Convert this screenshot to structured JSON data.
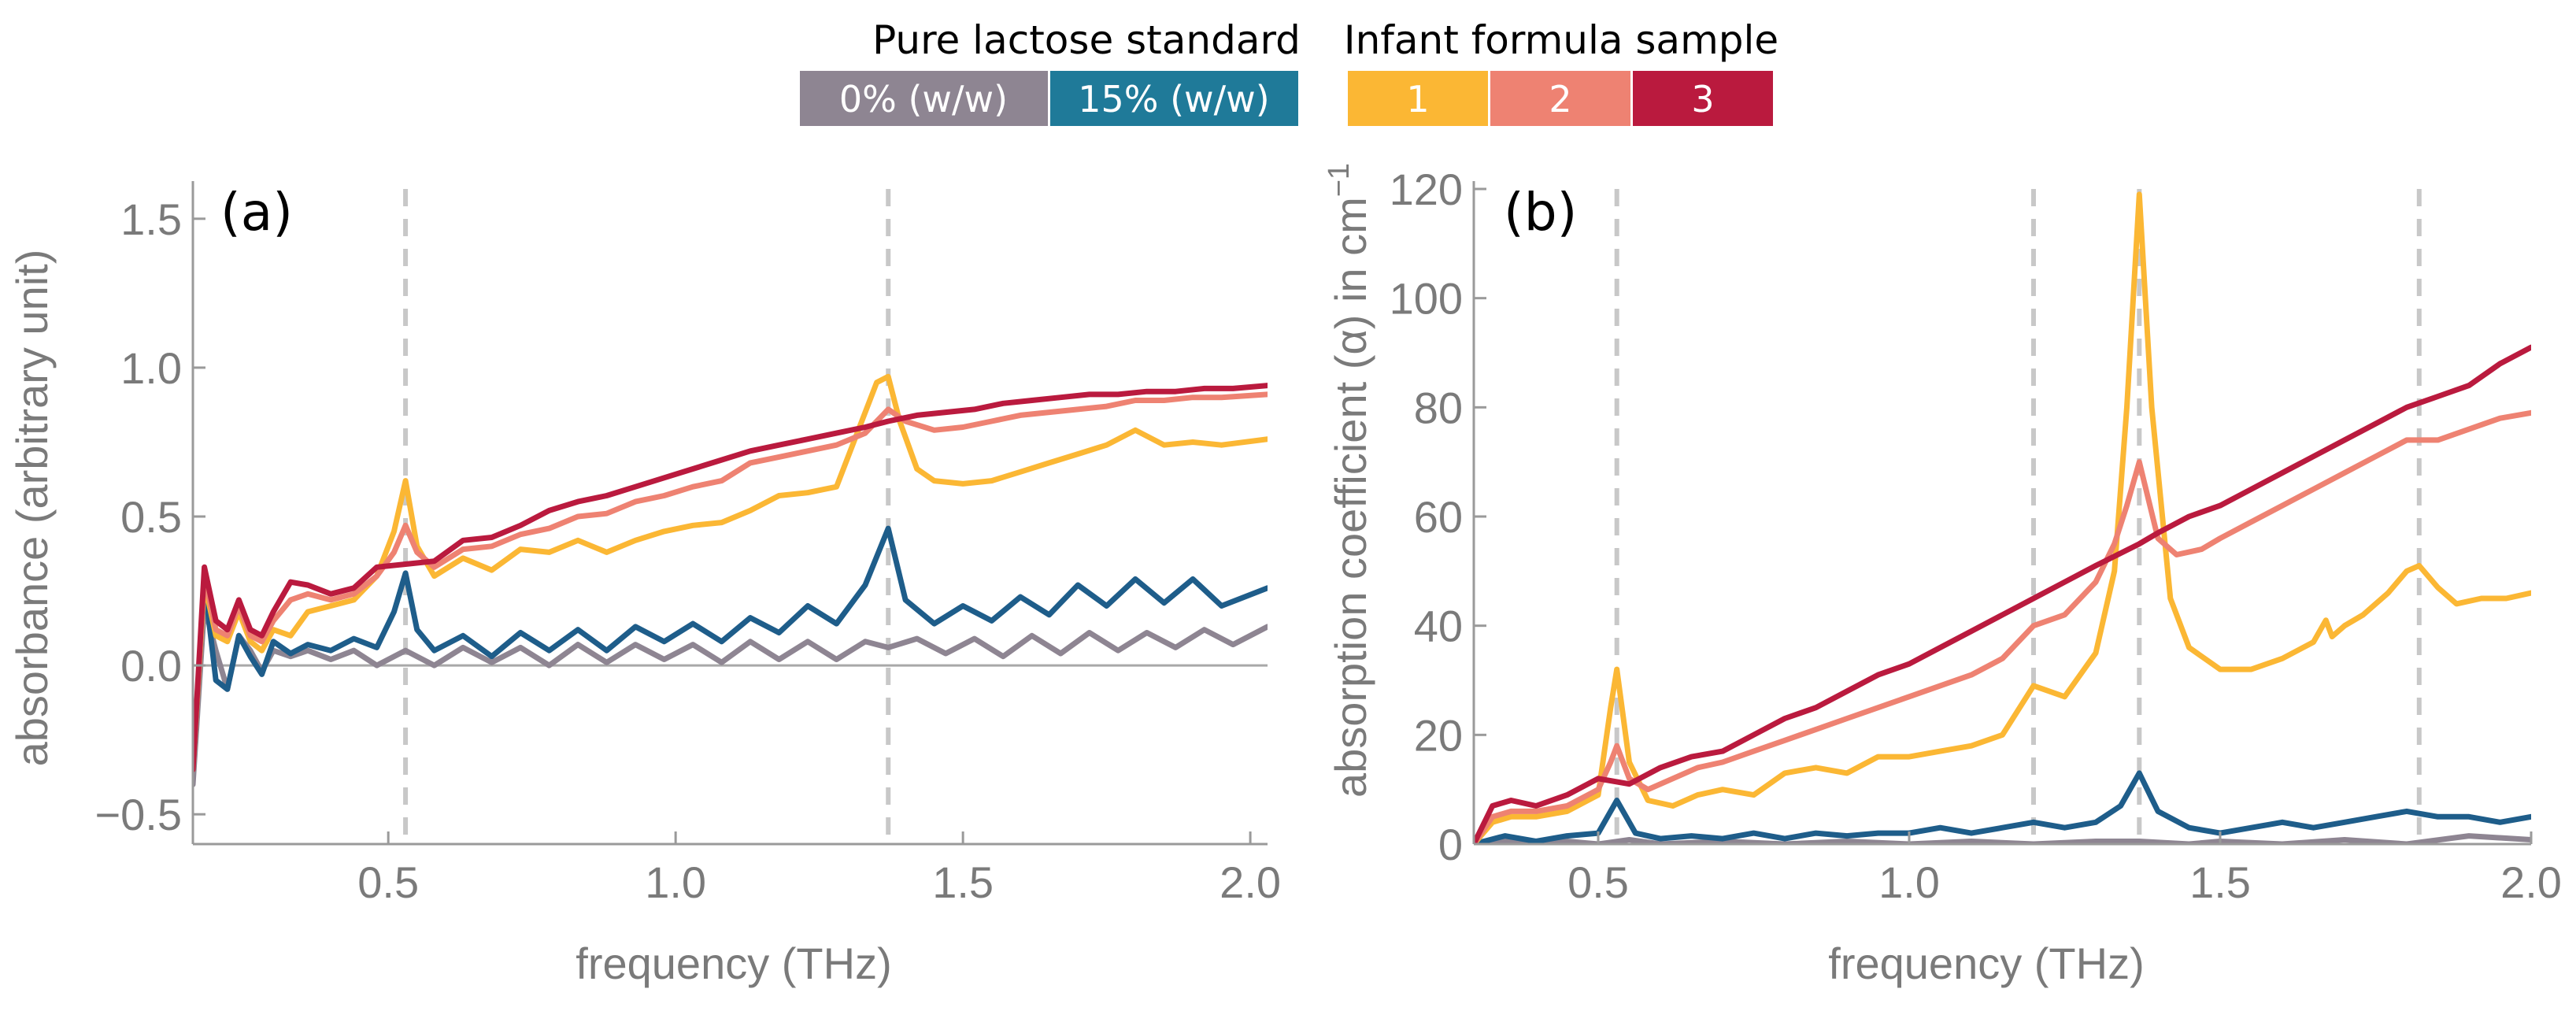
{
  "legend": {
    "group1_title": "Pure lactose standard",
    "group2_title": "Infant formula sample",
    "entries": [
      {
        "label": "0% (w/w)",
        "color": "#8e8592"
      },
      {
        "label": "15% (w/w)",
        "color": "#1f7a99"
      },
      {
        "label": "1",
        "color": "#fbb734"
      },
      {
        "label": "2",
        "color": "#ee8272"
      },
      {
        "label": "3",
        "color": "#ba1a3e"
      }
    ]
  },
  "colors": {
    "pct0": "#8e8592",
    "pct15": "#1e5d8a",
    "s1": "#fbb734",
    "s2": "#ee8272",
    "s3": "#ba1a3e",
    "axis": "#9a9a9a",
    "guide": "#c8c8c8"
  },
  "chart_data": [
    {
      "type": "line",
      "panel_label": "(a)",
      "xlabel": "frequency (THz)",
      "ylabel": "absorbance (arbitrary unit)",
      "xlim": [
        0.16,
        2.03
      ],
      "ylim": [
        -0.6,
        1.6
      ],
      "xticks": [
        0.5,
        1.0,
        1.5,
        2.0
      ],
      "xtick_labels": [
        "0.5",
        "1.0",
        "1.5",
        "2.0"
      ],
      "yticks": [
        -0.5,
        0.0,
        0.5,
        1.0,
        1.5
      ],
      "ytick_labels": [
        "−0.5",
        "0.0",
        "0.5",
        "1.0",
        "1.5"
      ],
      "reference_lines_x": [
        0.53,
        1.37
      ],
      "zero_line": 0,
      "series": [
        {
          "name": "0% (w/w)",
          "key": "pct0",
          "x": [
            0.16,
            0.18,
            0.2,
            0.22,
            0.24,
            0.26,
            0.28,
            0.3,
            0.33,
            0.36,
            0.4,
            0.44,
            0.48,
            0.53,
            0.58,
            0.63,
            0.68,
            0.73,
            0.78,
            0.83,
            0.88,
            0.93,
            0.98,
            1.03,
            1.08,
            1.13,
            1.18,
            1.23,
            1.28,
            1.33,
            1.37,
            1.42,
            1.47,
            1.52,
            1.57,
            1.62,
            1.67,
            1.72,
            1.77,
            1.82,
            1.87,
            1.92,
            1.97,
            2.03
          ],
          "y": [
            -0.4,
            0.2,
            0.05,
            -0.08,
            0.1,
            0.05,
            -0.02,
            0.05,
            0.03,
            0.05,
            0.02,
            0.05,
            0.0,
            0.05,
            0.0,
            0.06,
            0.01,
            0.06,
            0.0,
            0.07,
            0.01,
            0.07,
            0.02,
            0.07,
            0.01,
            0.08,
            0.02,
            0.08,
            0.02,
            0.08,
            0.06,
            0.09,
            0.04,
            0.09,
            0.03,
            0.1,
            0.04,
            0.11,
            0.05,
            0.11,
            0.06,
            0.12,
            0.07,
            0.13
          ]
        },
        {
          "name": "15% (w/w)",
          "key": "pct15",
          "x": [
            0.16,
            0.18,
            0.2,
            0.22,
            0.24,
            0.26,
            0.28,
            0.3,
            0.33,
            0.36,
            0.4,
            0.44,
            0.48,
            0.51,
            0.53,
            0.55,
            0.58,
            0.63,
            0.68,
            0.73,
            0.78,
            0.83,
            0.88,
            0.93,
            0.98,
            1.03,
            1.08,
            1.13,
            1.18,
            1.23,
            1.28,
            1.33,
            1.37,
            1.4,
            1.45,
            1.5,
            1.55,
            1.6,
            1.65,
            1.7,
            1.75,
            1.8,
            1.85,
            1.9,
            1.95,
            2.03
          ],
          "y": [
            -0.35,
            0.28,
            -0.05,
            -0.08,
            0.1,
            0.03,
            -0.03,
            0.08,
            0.04,
            0.07,
            0.05,
            0.09,
            0.06,
            0.18,
            0.31,
            0.12,
            0.05,
            0.1,
            0.03,
            0.11,
            0.05,
            0.12,
            0.05,
            0.13,
            0.08,
            0.14,
            0.08,
            0.16,
            0.11,
            0.2,
            0.14,
            0.27,
            0.46,
            0.22,
            0.14,
            0.2,
            0.15,
            0.23,
            0.17,
            0.27,
            0.2,
            0.29,
            0.21,
            0.29,
            0.2,
            0.26
          ]
        },
        {
          "name": "1",
          "key": "s1",
          "x": [
            0.16,
            0.18,
            0.2,
            0.22,
            0.24,
            0.26,
            0.28,
            0.3,
            0.33,
            0.36,
            0.4,
            0.44,
            0.48,
            0.51,
            0.53,
            0.55,
            0.58,
            0.63,
            0.68,
            0.73,
            0.78,
            0.83,
            0.88,
            0.93,
            0.98,
            1.03,
            1.08,
            1.13,
            1.18,
            1.23,
            1.28,
            1.32,
            1.35,
            1.37,
            1.39,
            1.42,
            1.45,
            1.5,
            1.55,
            1.6,
            1.65,
            1.7,
            1.75,
            1.8,
            1.85,
            1.9,
            1.95,
            2.03
          ],
          "y": [
            -0.35,
            0.28,
            0.1,
            0.08,
            0.18,
            0.08,
            0.05,
            0.12,
            0.1,
            0.18,
            0.2,
            0.22,
            0.3,
            0.45,
            0.62,
            0.4,
            0.3,
            0.36,
            0.32,
            0.39,
            0.38,
            0.42,
            0.38,
            0.42,
            0.45,
            0.47,
            0.48,
            0.52,
            0.57,
            0.58,
            0.6,
            0.8,
            0.95,
            0.97,
            0.82,
            0.66,
            0.62,
            0.61,
            0.62,
            0.65,
            0.68,
            0.71,
            0.74,
            0.79,
            0.74,
            0.75,
            0.74,
            0.76
          ]
        },
        {
          "name": "2",
          "key": "s2",
          "x": [
            0.16,
            0.18,
            0.2,
            0.22,
            0.24,
            0.26,
            0.28,
            0.3,
            0.33,
            0.36,
            0.4,
            0.44,
            0.48,
            0.51,
            0.53,
            0.55,
            0.58,
            0.63,
            0.68,
            0.73,
            0.78,
            0.83,
            0.88,
            0.93,
            0.98,
            1.03,
            1.08,
            1.13,
            1.18,
            1.23,
            1.28,
            1.33,
            1.37,
            1.4,
            1.45,
            1.5,
            1.55,
            1.6,
            1.65,
            1.7,
            1.75,
            1.8,
            1.85,
            1.9,
            1.95,
            2.03
          ],
          "y": [
            -0.35,
            0.3,
            0.12,
            0.1,
            0.2,
            0.1,
            0.08,
            0.15,
            0.22,
            0.24,
            0.22,
            0.24,
            0.3,
            0.38,
            0.47,
            0.38,
            0.33,
            0.39,
            0.4,
            0.44,
            0.46,
            0.5,
            0.51,
            0.55,
            0.57,
            0.6,
            0.62,
            0.68,
            0.7,
            0.72,
            0.74,
            0.78,
            0.86,
            0.82,
            0.79,
            0.8,
            0.82,
            0.84,
            0.85,
            0.86,
            0.87,
            0.89,
            0.89,
            0.9,
            0.9,
            0.91
          ]
        },
        {
          "name": "3",
          "key": "s3",
          "x": [
            0.16,
            0.18,
            0.2,
            0.22,
            0.24,
            0.26,
            0.28,
            0.3,
            0.33,
            0.36,
            0.4,
            0.44,
            0.48,
            0.53,
            0.58,
            0.63,
            0.68,
            0.73,
            0.78,
            0.83,
            0.88,
            0.93,
            0.98,
            1.03,
            1.08,
            1.13,
            1.18,
            1.23,
            1.28,
            1.33,
            1.37,
            1.42,
            1.47,
            1.52,
            1.57,
            1.62,
            1.67,
            1.72,
            1.77,
            1.82,
            1.87,
            1.92,
            1.97,
            2.03
          ],
          "y": [
            -0.35,
            0.33,
            0.15,
            0.12,
            0.22,
            0.12,
            0.1,
            0.18,
            0.28,
            0.27,
            0.24,
            0.26,
            0.33,
            0.34,
            0.35,
            0.42,
            0.43,
            0.47,
            0.52,
            0.55,
            0.57,
            0.6,
            0.63,
            0.66,
            0.69,
            0.72,
            0.74,
            0.76,
            0.78,
            0.8,
            0.82,
            0.84,
            0.85,
            0.86,
            0.88,
            0.89,
            0.9,
            0.91,
            0.91,
            0.92,
            0.92,
            0.93,
            0.93,
            0.94
          ]
        }
      ]
    },
    {
      "type": "line",
      "panel_label": "(b)",
      "xlabel": "frequency (THz)",
      "ylabel": "absorption coefficient (α) in cm",
      "ylabel_superscript": "−1",
      "xlim": [
        0.3,
        2.0
      ],
      "ylim": [
        0,
        120
      ],
      "xticks": [
        0.5,
        1.0,
        1.5,
        2.0
      ],
      "xtick_labels": [
        "0.5",
        "1.0",
        "1.5",
        "2.0"
      ],
      "yticks": [
        0,
        20,
        40,
        60,
        80,
        100,
        120
      ],
      "ytick_labels": [
        "0",
        "20",
        "40",
        "60",
        "80",
        "100",
        "120"
      ],
      "reference_lines_x": [
        0.53,
        1.2,
        1.37,
        1.82
      ],
      "series": [
        {
          "name": "0% (w/w)",
          "key": "pct0",
          "x": [
            0.3,
            0.35,
            0.4,
            0.45,
            0.5,
            0.55,
            0.6,
            0.7,
            0.8,
            0.9,
            1.0,
            1.1,
            1.2,
            1.3,
            1.37,
            1.45,
            1.5,
            1.6,
            1.7,
            1.8,
            1.9,
            2.0
          ],
          "y": [
            0,
            0.5,
            0,
            0.5,
            0,
            0.8,
            0,
            0.5,
            0,
            0.5,
            0,
            0.5,
            0,
            0.5,
            0.5,
            0,
            0.5,
            0,
            0.8,
            0,
            1.5,
            0.8
          ]
        },
        {
          "name": "15% (w/w)",
          "key": "pct15",
          "x": [
            0.3,
            0.35,
            0.4,
            0.45,
            0.5,
            0.53,
            0.56,
            0.6,
            0.65,
            0.7,
            0.75,
            0.8,
            0.85,
            0.9,
            0.95,
            1.0,
            1.05,
            1.1,
            1.15,
            1.2,
            1.25,
            1.3,
            1.34,
            1.37,
            1.4,
            1.45,
            1.5,
            1.55,
            1.6,
            1.65,
            1.7,
            1.75,
            1.8,
            1.85,
            1.9,
            1.95,
            2.0
          ],
          "y": [
            0,
            1.5,
            0.5,
            1.5,
            2,
            8,
            2,
            1,
            1.5,
            1,
            2,
            1,
            2,
            1.5,
            2,
            2,
            3,
            2,
            3,
            4,
            3,
            4,
            7,
            13,
            6,
            3,
            2,
            3,
            4,
            3,
            4,
            5,
            6,
            5,
            5,
            4,
            5
          ]
        },
        {
          "name": "1",
          "key": "s1",
          "x": [
            0.3,
            0.33,
            0.36,
            0.4,
            0.45,
            0.5,
            0.52,
            0.53,
            0.55,
            0.58,
            0.62,
            0.66,
            0.7,
            0.75,
            0.8,
            0.85,
            0.9,
            0.95,
            1.0,
            1.05,
            1.1,
            1.15,
            1.2,
            1.25,
            1.3,
            1.33,
            1.35,
            1.37,
            1.39,
            1.42,
            1.45,
            1.5,
            1.55,
            1.6,
            1.65,
            1.67,
            1.68,
            1.7,
            1.73,
            1.77,
            1.8,
            1.82,
            1.85,
            1.88,
            1.92,
            1.96,
            2.0
          ],
          "y": [
            0,
            4,
            5,
            5,
            6,
            9,
            25,
            32,
            15,
            8,
            7,
            9,
            10,
            9,
            13,
            14,
            13,
            16,
            16,
            17,
            18,
            20,
            29,
            27,
            35,
            50,
            80,
            119,
            80,
            45,
            36,
            32,
            32,
            34,
            37,
            41,
            38,
            40,
            42,
            46,
            50,
            51,
            47,
            44,
            45,
            45,
            46
          ]
        },
        {
          "name": "2",
          "key": "s2",
          "x": [
            0.3,
            0.33,
            0.36,
            0.4,
            0.45,
            0.5,
            0.52,
            0.53,
            0.55,
            0.58,
            0.62,
            0.66,
            0.7,
            0.75,
            0.8,
            0.85,
            0.9,
            0.95,
            1.0,
            1.05,
            1.1,
            1.15,
            1.2,
            1.25,
            1.3,
            1.33,
            1.35,
            1.37,
            1.4,
            1.43,
            1.47,
            1.5,
            1.55,
            1.6,
            1.65,
            1.7,
            1.75,
            1.8,
            1.85,
            1.9,
            1.95,
            2.0
          ],
          "y": [
            0,
            5,
            6,
            6,
            7,
            10,
            15,
            18,
            12,
            10,
            12,
            14,
            15,
            17,
            19,
            21,
            23,
            25,
            27,
            29,
            31,
            34,
            40,
            42,
            48,
            55,
            62,
            70,
            56,
            53,
            54,
            56,
            59,
            62,
            65,
            68,
            71,
            74,
            74,
            76,
            78,
            79
          ]
        },
        {
          "name": "3",
          "key": "s3",
          "x": [
            0.3,
            0.33,
            0.36,
            0.4,
            0.45,
            0.5,
            0.55,
            0.6,
            0.65,
            0.7,
            0.75,
            0.8,
            0.85,
            0.9,
            0.95,
            1.0,
            1.05,
            1.1,
            1.15,
            1.2,
            1.25,
            1.3,
            1.37,
            1.4,
            1.45,
            1.5,
            1.55,
            1.6,
            1.65,
            1.7,
            1.75,
            1.8,
            1.85,
            1.9,
            1.95,
            2.0
          ],
          "y": [
            0,
            7,
            8,
            7,
            9,
            12,
            11,
            14,
            16,
            17,
            20,
            23,
            25,
            28,
            31,
            33,
            36,
            39,
            42,
            45,
            48,
            51,
            55,
            57,
            60,
            62,
            65,
            68,
            71,
            74,
            77,
            80,
            82,
            84,
            88,
            91
          ]
        }
      ]
    }
  ]
}
